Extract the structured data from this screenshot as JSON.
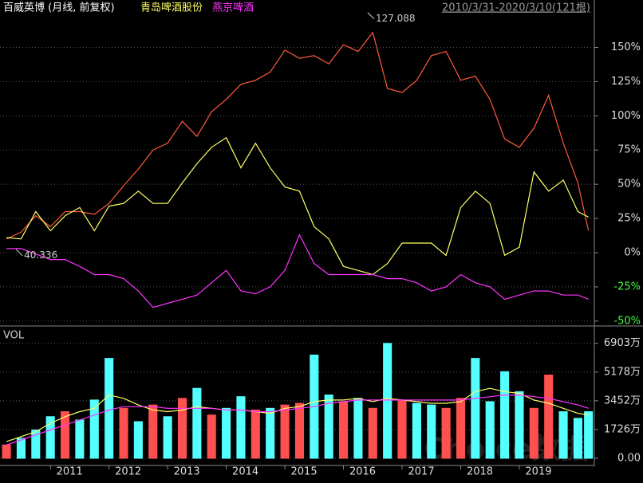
{
  "chart_data": [
    {
      "type": "line",
      "title": "百威英博 (月线, 前复权)",
      "period": "2010/3/31-2020/3/10(121根)",
      "x": [
        2010.25,
        2010.5,
        2010.75,
        2011,
        2011.25,
        2011.5,
        2011.75,
        2012,
        2012.25,
        2012.5,
        2012.75,
        2013,
        2013.25,
        2013.5,
        2013.75,
        2014,
        2014.25,
        2014.5,
        2014.75,
        2015,
        2015.25,
        2015.5,
        2015.75,
        2016,
        2016.25,
        2016.5,
        2016.75,
        2017,
        2017.25,
        2017.5,
        2017.75,
        2018,
        2018.25,
        2018.5,
        2018.75,
        2019,
        2019.25,
        2019.5,
        2019.75,
        2020,
        2020.18
      ],
      "xlim": [
        2010.14,
        2020.28
      ],
      "ylim": [
        -53,
        173
      ],
      "yticks": [
        {
          "value": 150,
          "label": "150%"
        },
        {
          "value": 125,
          "label": "125%"
        },
        {
          "value": 100,
          "label": "100%"
        },
        {
          "value": 75,
          "label": "75%"
        },
        {
          "value": 50,
          "label": "50%"
        },
        {
          "value": 25,
          "label": "25%"
        },
        {
          "value": 0,
          "label": "0%"
        },
        {
          "value": -25,
          "label": "-25%"
        },
        {
          "value": -50,
          "label": "-50%"
        }
      ],
      "grid": true,
      "annotations": [
        {
          "text": "127.088",
          "x": 2016.55,
          "y": 172
        },
        {
          "text": "40.336",
          "x": 2010.55,
          "y": -1
        }
      ],
      "series": [
        {
          "name": "百威英博",
          "color": "#ff5a3c",
          "values": [
            10,
            15,
            27,
            19,
            30,
            30,
            28,
            36,
            49,
            61,
            75,
            80,
            96,
            85,
            103,
            112,
            123,
            126,
            132,
            148,
            142,
            144,
            138,
            152,
            147,
            161,
            120,
            117,
            126,
            144,
            147,
            126,
            129,
            112,
            83,
            77,
            91,
            115,
            80,
            51,
            16
          ]
        },
        {
          "name": "青岛啤酒股份",
          "color": "#ffff66",
          "values": [
            11,
            10,
            30,
            16,
            27,
            33,
            16,
            34,
            36,
            45,
            36,
            36,
            51,
            65,
            77,
            84,
            62,
            80,
            62,
            48,
            45,
            19,
            10,
            -10,
            -13,
            -16,
            -8,
            7,
            7,
            7,
            -2,
            33,
            45,
            36,
            -2,
            4,
            59,
            45,
            53,
            30,
            26
          ]
        },
        {
          "name": "燕京啤酒",
          "color": "#ff33ff",
          "values": [
            3,
            3,
            -1,
            -5,
            -5,
            -10,
            -16,
            -16,
            -19,
            -28,
            -40,
            -37,
            -34,
            -31,
            -22,
            -13,
            -28,
            -30,
            -25,
            -13,
            13,
            -8,
            -16,
            -16,
            -16,
            -16,
            -19,
            -19,
            -22,
            -28,
            -25,
            -16,
            -22,
            -25,
            -34,
            -31,
            -28,
            -28,
            -31,
            -31,
            -34
          ]
        }
      ]
    },
    {
      "type": "bar",
      "title": "VOL",
      "watermark": "Choice数据",
      "x": [
        2010.25,
        2010.5,
        2010.75,
        2011,
        2011.25,
        2011.5,
        2011.75,
        2012,
        2012.25,
        2012.5,
        2012.75,
        2013,
        2013.25,
        2013.5,
        2013.75,
        2014,
        2014.25,
        2014.5,
        2014.75,
        2015,
        2015.25,
        2015.5,
        2015.75,
        2016,
        2016.25,
        2016.5,
        2016.75,
        2017,
        2017.25,
        2017.5,
        2017.75,
        2018,
        2018.25,
        2018.5,
        2018.75,
        2019,
        2019.25,
        2019.5,
        2019.75,
        2020,
        2020.18
      ],
      "xlim": [
        2010.14,
        2020.28
      ],
      "xticks": [
        2011,
        2012,
        2013,
        2014,
        2015,
        2016,
        2017,
        2018,
        2019
      ],
      "ylim": [
        0,
        7800
      ],
      "yticks": [
        {
          "value": 6903,
          "label": "6903万"
        },
        {
          "value": 5178,
          "label": "5178万"
        },
        {
          "value": 3452,
          "label": "3452万"
        },
        {
          "value": 1726,
          "label": "1726万"
        },
        {
          "value": 0,
          "label": "0.00"
        }
      ],
      "grid": true,
      "values": [
        800,
        1200,
        1700,
        2500,
        2800,
        2300,
        3500,
        6000,
        3000,
        2200,
        3200,
        2500,
        3600,
        4200,
        2600,
        3000,
        3700,
        2900,
        3000,
        3200,
        3300,
        6200,
        3800,
        3400,
        3600,
        3000,
        6900,
        3500,
        3300,
        3200,
        3000,
        3600,
        6000,
        3400,
        5200,
        4000,
        3000,
        5000,
        2800,
        2400,
        2800
      ],
      "colors": [
        "#ff5050",
        "#54ffff",
        "#54ffff",
        "#54ffff",
        "#ff5050",
        "#54ffff",
        "#54ffff",
        "#54ffff",
        "#ff5050",
        "#54ffff",
        "#ff5050",
        "#54ffff",
        "#ff5050",
        "#54ffff",
        "#ff5050",
        "#54ffff",
        "#54ffff",
        "#ff5050",
        "#54ffff",
        "#ff5050",
        "#ff5050",
        "#54ffff",
        "#54ffff",
        "#ff5050",
        "#54ffff",
        "#ff5050",
        "#54ffff",
        "#ff5050",
        "#54ffff",
        "#54ffff",
        "#ff5050",
        "#ff5050",
        "#54ffff",
        "#54ffff",
        "#54ffff",
        "#54ffff",
        "#ff5050",
        "#ff5050",
        "#54ffff",
        "#54ffff",
        "#54ffff"
      ],
      "series": [
        {
          "color": "#ffff66",
          "values": [
            1000,
            1300,
            1600,
            2100,
            2500,
            2800,
            3000,
            3800,
            3600,
            3200,
            2900,
            2800,
            2900,
            3100,
            3000,
            2900,
            2900,
            2800,
            2700,
            3000,
            3100,
            3400,
            3500,
            3500,
            3600,
            3400,
            3600,
            3500,
            3400,
            3300,
            3300,
            3400,
            4000,
            4200,
            4000,
            3900,
            3500,
            3300,
            3000,
            2700,
            2600
          ]
        },
        {
          "color": "#ff33ff",
          "values": [
            800,
            1100,
            1400,
            1700,
            2000,
            2300,
            2600,
            2900,
            3100,
            3100,
            3100,
            3000,
            3000,
            3000,
            3000,
            2900,
            2900,
            2800,
            2800,
            2900,
            3000,
            3100,
            3300,
            3400,
            3500,
            3500,
            3500,
            3500,
            3500,
            3500,
            3500,
            3500,
            3600,
            3700,
            3800,
            3800,
            3700,
            3600,
            3400,
            3200,
            3000
          ]
        }
      ]
    }
  ]
}
